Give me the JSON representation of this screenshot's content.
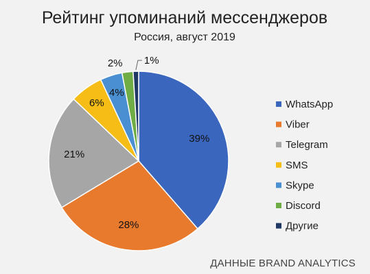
{
  "chart_data": {
    "type": "pie",
    "title": "Рейтинг упоминаний мессенджеров",
    "subtitle": "Россия, август 2019",
    "categories": [
      "WhatsApp",
      "Viber",
      "Telegram",
      "SMS",
      "Skype",
      "Discord",
      "Другие"
    ],
    "values": [
      39,
      28,
      21,
      6,
      4,
      2,
      1
    ],
    "value_labels": [
      "39%",
      "28%",
      "21%",
      "6%",
      "4%",
      "2%",
      "1%"
    ],
    "colors": [
      "#3a66be",
      "#e87a2d",
      "#a6a6a6",
      "#f5bd15",
      "#4a8fd2",
      "#70ad47",
      "#1f3864"
    ],
    "legend_position": "right"
  },
  "footer": {
    "credit": "ДАННЫЕ BRAND ANALYTICS"
  }
}
